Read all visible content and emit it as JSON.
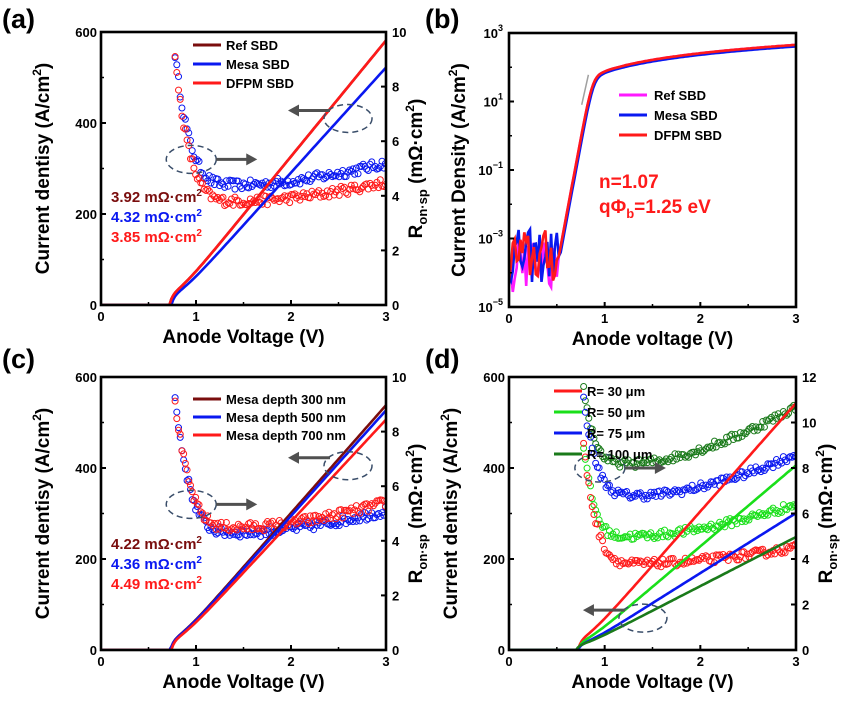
{
  "figure": {
    "colors": {
      "ref": "#7a0d0d",
      "mesa": "#0a18f0",
      "dfpm": "#ff1a1a",
      "magenta": "#ff1aff",
      "green_light": "#1adf1a",
      "green_dark": "#1a7a1a",
      "arrow": "#505050",
      "ellipse": "#3a4e6a",
      "tangent": "#a0a0a0"
    }
  },
  "chart_data": [
    {
      "id": "a",
      "panel_label": "(a)",
      "type": "line",
      "xlabel": "Anode Voltage (V)",
      "ylabel": "Current dentisy (A/cm²)",
      "y2label": "R_on·sp (mΩ·cm²)",
      "xlim": [
        0,
        3
      ],
      "ylim": [
        0,
        600
      ],
      "y2lim": [
        0,
        10
      ],
      "xticks": [
        "0",
        "1",
        "2",
        "3"
      ],
      "yticks": [
        "0",
        "200",
        "400",
        "600"
      ],
      "y2ticks": [
        "0",
        "2",
        "4",
        "6",
        "8",
        "10"
      ],
      "grid": false,
      "legend_position": "top-center",
      "series": [
        {
          "name": "Ref SBD",
          "color_key": "ref",
          "axis": "left",
          "von": 0.72,
          "slope": 255,
          "curv": 0.0
        },
        {
          "name": "Mesa SBD",
          "color_key": "mesa",
          "axis": "left",
          "von": 0.74,
          "slope": 231,
          "curv": 0.0
        },
        {
          "name": "DFPM SBD",
          "color_key": "dfpm",
          "axis": "left",
          "von": 0.72,
          "slope": 255,
          "curv": 0.0
        }
      ],
      "ron_series": [
        {
          "color_key": "mesa",
          "peak": 9.2,
          "min": 4.4,
          "end": 5.2,
          "vmin": 1.5
        },
        {
          "color_key": "dfpm",
          "peak": 9.0,
          "min": 3.8,
          "end": 4.5,
          "vmin": 1.5
        }
      ],
      "annotations": [
        {
          "text": "3.92 mΩ·cm²",
          "color_key": "ref"
        },
        {
          "text": "4.32 mΩ·cm²",
          "color_key": "mesa"
        },
        {
          "text": "3.85 mΩ·cm²",
          "color_key": "dfpm"
        }
      ],
      "ellipse_left": {
        "x": 2.6,
        "y": 410
      },
      "ellipse_right": {
        "x": 0.95,
        "y": 320
      }
    },
    {
      "id": "b",
      "panel_label": "(b)",
      "type": "line",
      "scale": "log",
      "xlabel": "Anode voltage (V)",
      "ylabel": "Current Density (A/cm²)",
      "xlim": [
        0,
        3
      ],
      "ylim_exp": [
        -5,
        3
      ],
      "xticks": [
        "0",
        "1",
        "2",
        "3"
      ],
      "ytick_exps": [
        "3",
        "1",
        "-1",
        "-3",
        "-5"
      ],
      "grid": false,
      "legend_position": "center-right",
      "series": [
        {
          "name": "Ref SBD",
          "color_key": "magenta"
        },
        {
          "name": "Mesa SBD",
          "color_key": "mesa"
        },
        {
          "name": "DFPM SBD",
          "color_key": "dfpm"
        }
      ],
      "annotations": [
        {
          "text": "n=1.07",
          "color_key": "dfpm"
        },
        {
          "text_parts": [
            "qΦ",
            "b",
            "=1.25 eV"
          ],
          "color_key": "dfpm"
        }
      ],
      "ideality_n": 1.07,
      "barrier_eV": 1.25,
      "leakage_floor": 0.0003,
      "turn_on_v": 0.52,
      "end_value": 450
    },
    {
      "id": "c",
      "panel_label": "(c)",
      "type": "line",
      "xlabel": "Anode Voltage (V)",
      "ylabel": "Current dentisy (A/cm²)",
      "y2label": "R_on·sp (mΩ·cm²)",
      "xlim": [
        0,
        3
      ],
      "ylim": [
        0,
        600
      ],
      "y2lim": [
        0,
        10
      ],
      "xticks": [
        "0",
        "1",
        "2",
        "3"
      ],
      "yticks": [
        "0",
        "200",
        "400",
        "600"
      ],
      "y2ticks": [
        "0",
        "2",
        "4",
        "6",
        "8",
        "10"
      ],
      "grid": false,
      "legend_position": "top-right",
      "series": [
        {
          "name": "Mesa depth 300 nm",
          "color_key": "ref",
          "axis": "left",
          "von": 0.73,
          "slope": 237,
          "curv": 0.0
        },
        {
          "name": "Mesa depth 500 nm",
          "color_key": "mesa",
          "axis": "left",
          "von": 0.73,
          "slope": 232,
          "curv": 0.0
        },
        {
          "name": "Mesa depth 700 nm",
          "color_key": "dfpm",
          "axis": "left",
          "von": 0.74,
          "slope": 224,
          "curv": 0.0
        }
      ],
      "ron_series": [
        {
          "color_key": "mesa",
          "peak": 9.2,
          "min": 4.3,
          "end": 5.1,
          "vmin": 1.5
        },
        {
          "color_key": "dfpm",
          "peak": 9.1,
          "min": 4.5,
          "end": 5.4,
          "vmin": 1.5
        }
      ],
      "annotations": [
        {
          "text": "4.22 mΩ·cm²",
          "color_key": "ref"
        },
        {
          "text": "4.36 mΩ·cm²",
          "color_key": "mesa"
        },
        {
          "text": "4.49 mΩ·cm²",
          "color_key": "dfpm"
        }
      ],
      "ellipse_left": {
        "x": 2.6,
        "y": 405
      },
      "ellipse_right": {
        "x": 0.95,
        "y": 320
      }
    },
    {
      "id": "d",
      "panel_label": "(d)",
      "type": "line",
      "xlabel": "Anode Voltage (V)",
      "ylabel": "Current dentisy (A/cm²)",
      "y2label": "R_on·sp (mΩ·cm²)",
      "xlim": [
        0,
        3
      ],
      "ylim": [
        0,
        600
      ],
      "y2lim": [
        0,
        12
      ],
      "xticks": [
        "0",
        "1",
        "2",
        "3"
      ],
      "yticks": [
        "0",
        "200",
        "400",
        "600"
      ],
      "y2ticks": [
        "0",
        "2",
        "4",
        "6",
        "8",
        "10",
        "12"
      ],
      "grid": false,
      "legend_position": "top-center",
      "series": [
        {
          "name": "R= 30 μm",
          "color_key": "dfpm",
          "axis": "left",
          "von": 0.72,
          "slope": 238,
          "curv": 0.0
        },
        {
          "name": "R= 50 μm",
          "color_key": "green_light",
          "axis": "left",
          "von": 0.72,
          "slope": 178,
          "curv": 0.0
        },
        {
          "name": "R= 75 μm",
          "color_key": "mesa",
          "axis": "left",
          "von": 0.72,
          "slope": 132,
          "curv": 0.0
        },
        {
          "name": "R= 100 μm",
          "color_key": "green_dark",
          "axis": "left",
          "von": 0.7,
          "slope": 108,
          "curv": 0.0
        }
      ],
      "ron_series": [
        {
          "color_key": "green_dark",
          "peak": 11.5,
          "min": 8.2,
          "end": 10.7,
          "vmin": 1.3
        },
        {
          "color_key": "mesa",
          "peak": 11.0,
          "min": 6.8,
          "end": 8.6,
          "vmin": 1.4
        },
        {
          "color_key": "green_light",
          "peak": 9.0,
          "min": 5.0,
          "end": 6.4,
          "vmin": 1.3
        },
        {
          "color_key": "dfpm",
          "peak": 9.0,
          "min": 3.8,
          "end": 4.5,
          "vmin": 1.4
        }
      ],
      "ellipse_left": {
        "x": 1.4,
        "y": 70
      },
      "ellipse_right": {
        "x": 0.95,
        "y": 400
      }
    }
  ]
}
